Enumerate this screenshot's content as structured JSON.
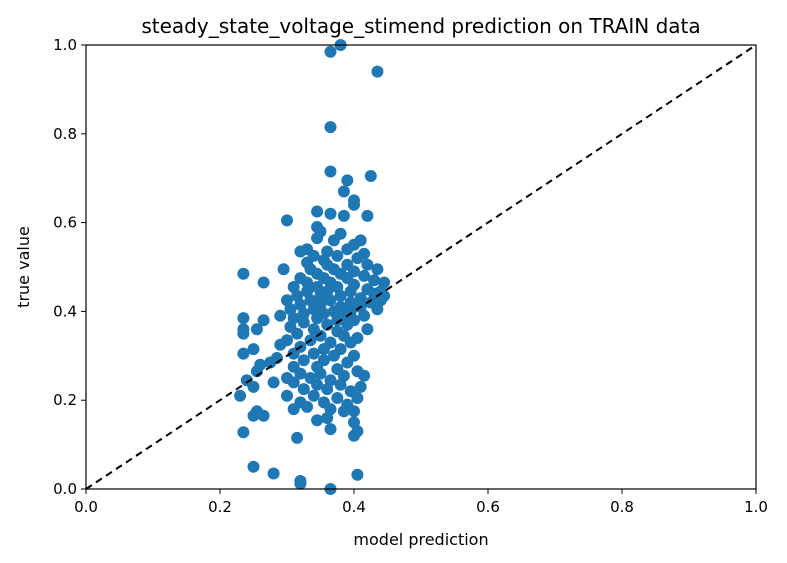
{
  "chart_data": {
    "type": "scatter",
    "title": "steady_state_voltage_stimend prediction on TRAIN data",
    "xlabel": "model prediction",
    "ylabel": "true value",
    "xlim": [
      0.0,
      1.0
    ],
    "ylim": [
      0.0,
      1.0
    ],
    "xticks": [
      "0.0",
      "0.2",
      "0.4",
      "0.6",
      "0.8",
      "1.0"
    ],
    "yticks": [
      "0.0",
      "0.2",
      "0.4",
      "0.6",
      "0.8",
      "1.0"
    ],
    "reference_line": {
      "from": [
        0,
        0
      ],
      "to": [
        1,
        1
      ],
      "style": "dashed",
      "color": "#000000"
    },
    "point_color": "#1f77b4",
    "series": [
      {
        "name": "train",
        "points": [
          [
            0.38,
            1.0
          ],
          [
            0.365,
            0.985
          ],
          [
            0.435,
            0.94
          ],
          [
            0.365,
            0.815
          ],
          [
            0.365,
            0.715
          ],
          [
            0.39,
            0.695
          ],
          [
            0.425,
            0.705
          ],
          [
            0.385,
            0.67
          ],
          [
            0.4,
            0.65
          ],
          [
            0.4,
            0.64
          ],
          [
            0.345,
            0.625
          ],
          [
            0.365,
            0.62
          ],
          [
            0.385,
            0.615
          ],
          [
            0.42,
            0.615
          ],
          [
            0.3,
            0.605
          ],
          [
            0.345,
            0.59
          ],
          [
            0.35,
            0.58
          ],
          [
            0.38,
            0.575
          ],
          [
            0.345,
            0.565
          ],
          [
            0.37,
            0.56
          ],
          [
            0.41,
            0.56
          ],
          [
            0.4,
            0.55
          ],
          [
            0.33,
            0.54
          ],
          [
            0.32,
            0.535
          ],
          [
            0.36,
            0.535
          ],
          [
            0.39,
            0.54
          ],
          [
            0.415,
            0.53
          ],
          [
            0.34,
            0.525
          ],
          [
            0.375,
            0.525
          ],
          [
            0.355,
            0.515
          ],
          [
            0.405,
            0.52
          ],
          [
            0.33,
            0.51
          ],
          [
            0.36,
            0.505
          ],
          [
            0.39,
            0.505
          ],
          [
            0.42,
            0.505
          ],
          [
            0.295,
            0.495
          ],
          [
            0.335,
            0.495
          ],
          [
            0.37,
            0.495
          ],
          [
            0.4,
            0.49
          ],
          [
            0.435,
            0.495
          ],
          [
            0.235,
            0.485
          ],
          [
            0.345,
            0.485
          ],
          [
            0.38,
            0.485
          ],
          [
            0.415,
            0.48
          ],
          [
            0.32,
            0.475
          ],
          [
            0.355,
            0.475
          ],
          [
            0.39,
            0.475
          ],
          [
            0.43,
            0.47
          ],
          [
            0.445,
            0.465
          ],
          [
            0.265,
            0.465
          ],
          [
            0.33,
            0.465
          ],
          [
            0.365,
            0.465
          ],
          [
            0.4,
            0.46
          ],
          [
            0.31,
            0.455
          ],
          [
            0.345,
            0.455
          ],
          [
            0.375,
            0.455
          ],
          [
            0.42,
            0.45
          ],
          [
            0.44,
            0.445
          ],
          [
            0.33,
            0.445
          ],
          [
            0.36,
            0.445
          ],
          [
            0.395,
            0.445
          ],
          [
            0.43,
            0.44
          ],
          [
            0.445,
            0.435
          ],
          [
            0.315,
            0.435
          ],
          [
            0.35,
            0.435
          ],
          [
            0.38,
            0.435
          ],
          [
            0.41,
            0.43
          ],
          [
            0.3,
            0.425
          ],
          [
            0.335,
            0.425
          ],
          [
            0.365,
            0.425
          ],
          [
            0.395,
            0.42
          ],
          [
            0.425,
            0.42
          ],
          [
            0.44,
            0.425
          ],
          [
            0.32,
            0.415
          ],
          [
            0.35,
            0.415
          ],
          [
            0.38,
            0.41
          ],
          [
            0.41,
            0.41
          ],
          [
            0.435,
            0.405
          ],
          [
            0.305,
            0.405
          ],
          [
            0.34,
            0.405
          ],
          [
            0.37,
            0.4
          ],
          [
            0.395,
            0.4
          ],
          [
            0.325,
            0.395
          ],
          [
            0.355,
            0.395
          ],
          [
            0.385,
            0.39
          ],
          [
            0.415,
            0.39
          ],
          [
            0.29,
            0.39
          ],
          [
            0.31,
            0.385
          ],
          [
            0.345,
            0.385
          ],
          [
            0.375,
            0.38
          ],
          [
            0.4,
            0.38
          ],
          [
            0.235,
            0.385
          ],
          [
            0.265,
            0.38
          ],
          [
            0.325,
            0.375
          ],
          [
            0.36,
            0.37
          ],
          [
            0.39,
            0.37
          ],
          [
            0.235,
            0.36
          ],
          [
            0.255,
            0.36
          ],
          [
            0.305,
            0.365
          ],
          [
            0.34,
            0.36
          ],
          [
            0.375,
            0.355
          ],
          [
            0.42,
            0.36
          ],
          [
            0.235,
            0.35
          ],
          [
            0.315,
            0.35
          ],
          [
            0.35,
            0.345
          ],
          [
            0.385,
            0.345
          ],
          [
            0.405,
            0.34
          ],
          [
            0.3,
            0.335
          ],
          [
            0.335,
            0.335
          ],
          [
            0.365,
            0.33
          ],
          [
            0.395,
            0.33
          ],
          [
            0.29,
            0.325
          ],
          [
            0.32,
            0.32
          ],
          [
            0.355,
            0.315
          ],
          [
            0.38,
            0.315
          ],
          [
            0.25,
            0.315
          ],
          [
            0.235,
            0.305
          ],
          [
            0.31,
            0.305
          ],
          [
            0.34,
            0.305
          ],
          [
            0.37,
            0.3
          ],
          [
            0.4,
            0.3
          ],
          [
            0.285,
            0.295
          ],
          [
            0.325,
            0.29
          ],
          [
            0.355,
            0.29
          ],
          [
            0.39,
            0.285
          ],
          [
            0.275,
            0.285
          ],
          [
            0.26,
            0.28
          ],
          [
            0.31,
            0.275
          ],
          [
            0.345,
            0.275
          ],
          [
            0.375,
            0.27
          ],
          [
            0.405,
            0.265
          ],
          [
            0.255,
            0.265
          ],
          [
            0.32,
            0.26
          ],
          [
            0.35,
            0.26
          ],
          [
            0.385,
            0.255
          ],
          [
            0.415,
            0.255
          ],
          [
            0.3,
            0.25
          ],
          [
            0.335,
            0.25
          ],
          [
            0.365,
            0.245
          ],
          [
            0.24,
            0.245
          ],
          [
            0.28,
            0.24
          ],
          [
            0.31,
            0.24
          ],
          [
            0.345,
            0.235
          ],
          [
            0.38,
            0.235
          ],
          [
            0.41,
            0.23
          ],
          [
            0.25,
            0.23
          ],
          [
            0.325,
            0.225
          ],
          [
            0.36,
            0.225
          ],
          [
            0.395,
            0.22
          ],
          [
            0.23,
            0.21
          ],
          [
            0.3,
            0.21
          ],
          [
            0.34,
            0.21
          ],
          [
            0.375,
            0.205
          ],
          [
            0.405,
            0.205
          ],
          [
            0.32,
            0.195
          ],
          [
            0.355,
            0.195
          ],
          [
            0.39,
            0.19
          ],
          [
            0.33,
            0.185
          ],
          [
            0.365,
            0.18
          ],
          [
            0.31,
            0.18
          ],
          [
            0.385,
            0.175
          ],
          [
            0.4,
            0.175
          ],
          [
            0.255,
            0.175
          ],
          [
            0.25,
            0.165
          ],
          [
            0.265,
            0.165
          ],
          [
            0.345,
            0.155
          ],
          [
            0.36,
            0.16
          ],
          [
            0.4,
            0.15
          ],
          [
            0.365,
            0.135
          ],
          [
            0.405,
            0.13
          ],
          [
            0.235,
            0.128
          ],
          [
            0.4,
            0.12
          ],
          [
            0.315,
            0.115
          ],
          [
            0.25,
            0.05
          ],
          [
            0.28,
            0.035
          ],
          [
            0.405,
            0.032
          ],
          [
            0.32,
            0.018
          ],
          [
            0.32,
            0.012
          ],
          [
            0.365,
            0.0
          ]
        ]
      }
    ]
  }
}
